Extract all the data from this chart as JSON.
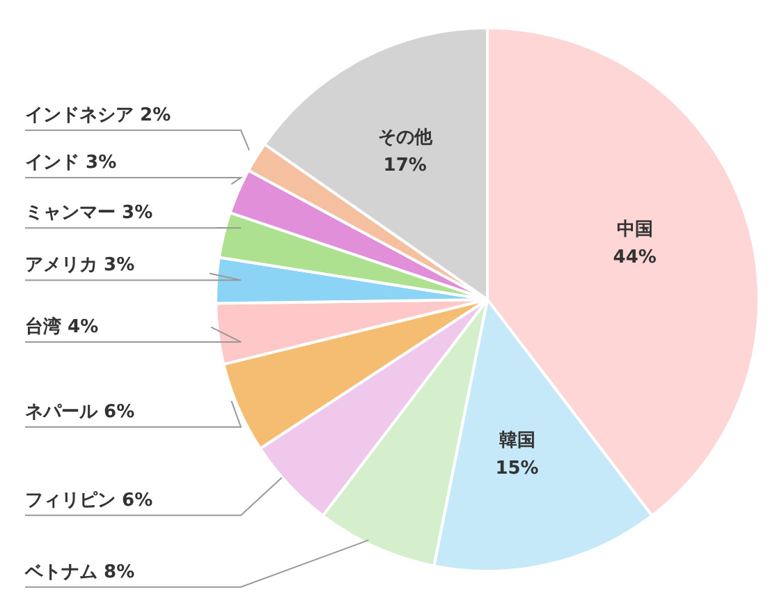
{
  "chart_data": {
    "type": "pie",
    "categories": [
      "中国",
      "韓国",
      "ベトナム",
      "フィリピン",
      "ネパール",
      "台湾",
      "アメリカ",
      "ミャンマー",
      "インド",
      "インドネシア",
      "その他"
    ],
    "values": [
      44,
      15,
      8,
      6,
      6,
      4,
      3,
      3,
      3,
      2,
      17
    ],
    "value_labels": [
      "44%",
      "15%",
      "8%",
      "6%",
      "6%",
      "4%",
      "3%",
      "3%",
      "3%",
      "2%",
      "17%"
    ],
    "colors": [
      "#ffd6d6",
      "#c5e9f8",
      "#d5efcc",
      "#f0c8ec",
      "#f5bd72",
      "#ffc8c8",
      "#8bd4f5",
      "#ade08f",
      "#e08fd8",
      "#f5c0a0",
      "#d3d3d3"
    ]
  }
}
